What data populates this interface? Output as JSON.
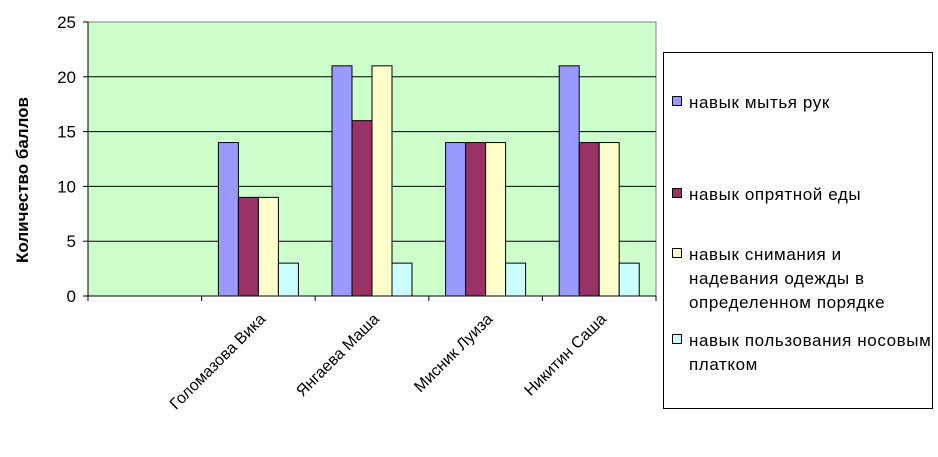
{
  "chart_data": {
    "type": "bar",
    "title": "",
    "xlabel": "",
    "ylabel": "Количество баллов",
    "ylim": [
      0,
      25
    ],
    "yticks": [
      0,
      5,
      10,
      15,
      20,
      25
    ],
    "grid": true,
    "legend_position": "right",
    "categories": [
      "",
      "Голомазова Вика",
      "Янгаева Маша",
      "Мисник Луиза",
      "Никитин Саша"
    ],
    "series": [
      {
        "name": "навык мытья рук",
        "color": "#9999ff",
        "values": [
          null,
          14,
          21,
          14,
          21
        ]
      },
      {
        "name": "навык опрятной еды",
        "color": "#993366",
        "values": [
          null,
          9,
          16,
          14,
          14
        ]
      },
      {
        "name": "навык снимания и надевания одежды в определенном порядке",
        "color": "#ffffcc",
        "values": [
          null,
          9,
          21,
          14,
          14
        ]
      },
      {
        "name": "навык пользования носовым платком",
        "color": "#ccffff",
        "values": [
          null,
          3,
          3,
          3,
          3
        ]
      }
    ],
    "plot_background": "#ccffcc"
  }
}
